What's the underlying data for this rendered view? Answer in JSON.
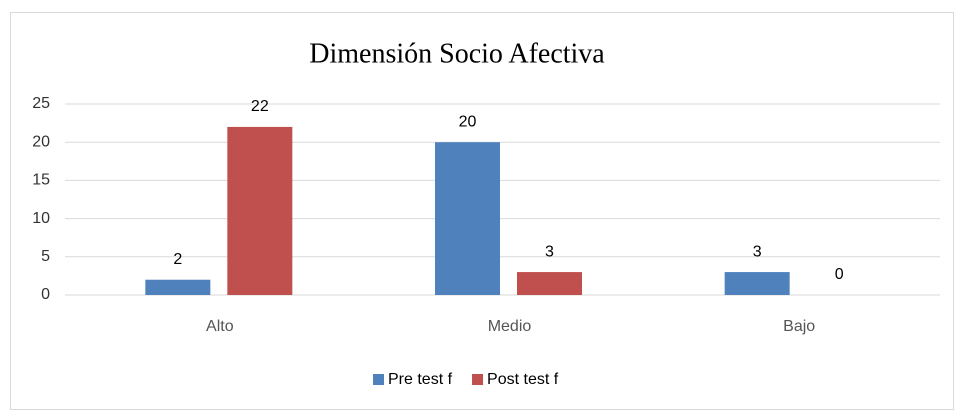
{
  "chart_data": {
    "type": "bar",
    "title": "Dimensión Socio Afectiva",
    "categories": [
      "Alto",
      "Medio",
      "Bajo"
    ],
    "series": [
      {
        "name": "Pre test f",
        "color": "#4f81bd",
        "values": [
          2,
          20,
          3
        ]
      },
      {
        "name": "Post test f",
        "color": "#c0504d",
        "values": [
          22,
          3,
          0
        ]
      }
    ],
    "ylim": [
      0,
      25
    ],
    "yticks": [
      0,
      5,
      10,
      15,
      20,
      25
    ],
    "grid": true,
    "legend": "bottom"
  }
}
